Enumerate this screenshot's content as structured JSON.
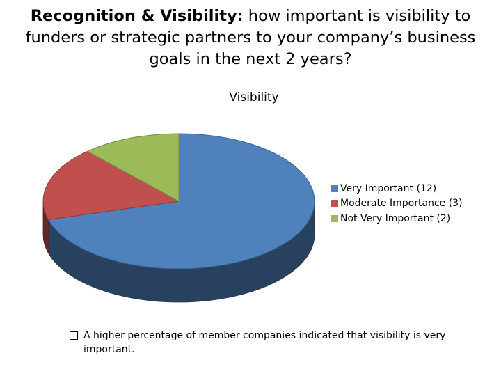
{
  "title": {
    "bold": "Recognition & Visibility:",
    "rest": " how important is visibility to funders or strategic partners to your company’s business goals in the next 2 years?"
  },
  "chart_data": {
    "type": "pie",
    "title": "Visibility",
    "categories": [
      "Very Important (12)",
      "Moderate Importance (3)",
      "Not Very Important (2)"
    ],
    "values": [
      12,
      3,
      2
    ],
    "colors": [
      "#4F81BD",
      "#C0504D",
      "#9BBB59"
    ],
    "legend_position": "right",
    "style": "3d"
  },
  "note": "A higher percentage of member companies indicated that visibility is very important."
}
